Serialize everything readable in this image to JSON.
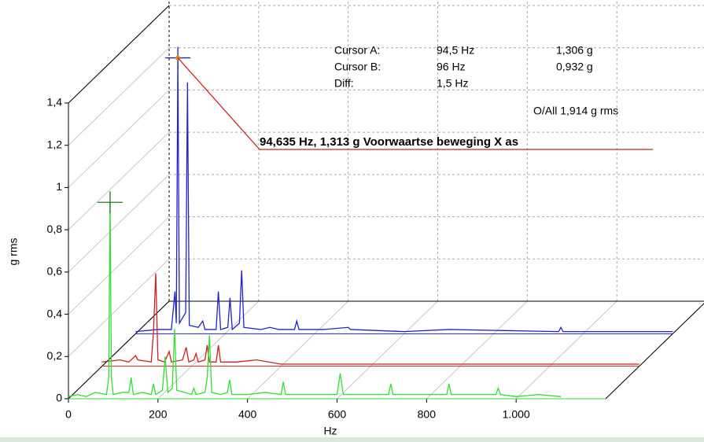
{
  "chart_data": {
    "type": "waterfall",
    "xlabel": "Hz",
    "ylabel": "g rms",
    "xlim": [
      0,
      1200
    ],
    "ylim": [
      0,
      1.4
    ],
    "xticks": [
      0,
      200,
      400,
      600,
      800,
      {
        "value": 1000,
        "label": "1.000"
      }
    ],
    "yticks": [
      0,
      {
        "value": 0.2,
        "label": "0,2"
      },
      {
        "value": 0.4,
        "label": "0,4"
      },
      {
        "value": 0.6,
        "label": "0,6"
      },
      {
        "value": 0.8,
        "label": "0,8"
      },
      1,
      {
        "value": 1.2,
        "label": "1,2"
      },
      {
        "value": 1.4,
        "label": "1,4"
      }
    ],
    "grid": true,
    "cursor_rows": [
      [
        "Cursor A:",
        "94,5 Hz",
        "1,306 g"
      ],
      [
        "Cursor B:",
        "96 Hz",
        "0,932 g"
      ],
      [
        "Diff:",
        "1,5 Hz"
      ]
    ],
    "overall": "O/All 1,914 g rms",
    "peak_label": "94,635 Hz, 1,313 g  Voorwaartse beweging X as",
    "series": [
      {
        "color": "#33dd33",
        "x": [
          0,
          20,
          40,
          60,
          85,
          90,
          93,
          96,
          100,
          120,
          135,
          140,
          145,
          165,
          185,
          190,
          195,
          210,
          216,
          222,
          232,
          237,
          242,
          260,
          275,
          280,
          285,
          305,
          310,
          315,
          320,
          340,
          355,
          360,
          365,
          400,
          440,
          475,
          480,
          485,
          520,
          600,
          607,
          614,
          660,
          715,
          720,
          725,
          780,
          845,
          850,
          855,
          900,
          955,
          960,
          965,
          1000,
          1050,
          1100
        ],
        "values": [
          0.01,
          0.02,
          0.01,
          0.03,
          0.02,
          0.1,
          0.93,
          0.1,
          0.02,
          0.03,
          0.03,
          0.1,
          0.02,
          0.03,
          0.02,
          0.07,
          0.02,
          0.04,
          0.2,
          0.03,
          0.05,
          0.33,
          0.04,
          0.03,
          0.02,
          0.05,
          0.02,
          0.03,
          0.1,
          0.3,
          0.03,
          0.02,
          0.03,
          0.09,
          0.02,
          0.02,
          0.03,
          0.02,
          0.08,
          0.02,
          0.02,
          0.02,
          0.12,
          0.02,
          0.02,
          0.02,
          0.07,
          0.02,
          0.02,
          0.02,
          0.07,
          0.02,
          0.02,
          0.02,
          0.05,
          0.02,
          0.01,
          0.02,
          0.01
        ]
      },
      {
        "color": "#cc2222",
        "x": [
          0,
          40,
          60,
          75,
          80,
          110,
          115,
          120,
          125,
          140,
          150,
          155,
          180,
          188,
          194,
          205,
          210,
          215,
          230,
          235,
          240,
          255,
          260,
          265,
          300,
          345,
          400,
          500,
          700,
          1000,
          1200
        ],
        "values": [
          0.02,
          0.03,
          0.02,
          0.05,
          0.03,
          0.02,
          0.16,
          0.44,
          0.03,
          0.02,
          0.07,
          0.02,
          0.03,
          0.09,
          0.02,
          0.03,
          0.06,
          0.02,
          0.03,
          0.1,
          0.02,
          0.02,
          0.1,
          0.02,
          0.02,
          0.03,
          0.01,
          0.01,
          0.01,
          0.01,
          0.01
        ]
      },
      {
        "color": "#2222cc",
        "x": [
          0,
          50,
          80,
          88,
          91,
          94.5,
          98,
          112,
          116,
          120,
          140,
          150,
          155,
          180,
          185,
          190,
          206,
          211,
          216,
          232,
          237,
          242,
          280,
          300,
          320,
          355,
          360,
          365,
          420,
          475,
          480,
          600,
          700,
          945,
          950,
          955,
          1100,
          1200
        ],
        "values": [
          0.01,
          0.02,
          0.02,
          0.2,
          0.05,
          1.306,
          0.05,
          0.1,
          1.19,
          0.04,
          0.03,
          0.06,
          0.02,
          0.02,
          0.2,
          0.02,
          0.03,
          0.17,
          0.02,
          0.05,
          0.3,
          0.03,
          0.02,
          0.03,
          0.02,
          0.02,
          0.06,
          0.02,
          0.02,
          0.03,
          0.02,
          0.01,
          0.02,
          0.01,
          0.03,
          0.01,
          0.01,
          0.01
        ]
      }
    ]
  }
}
